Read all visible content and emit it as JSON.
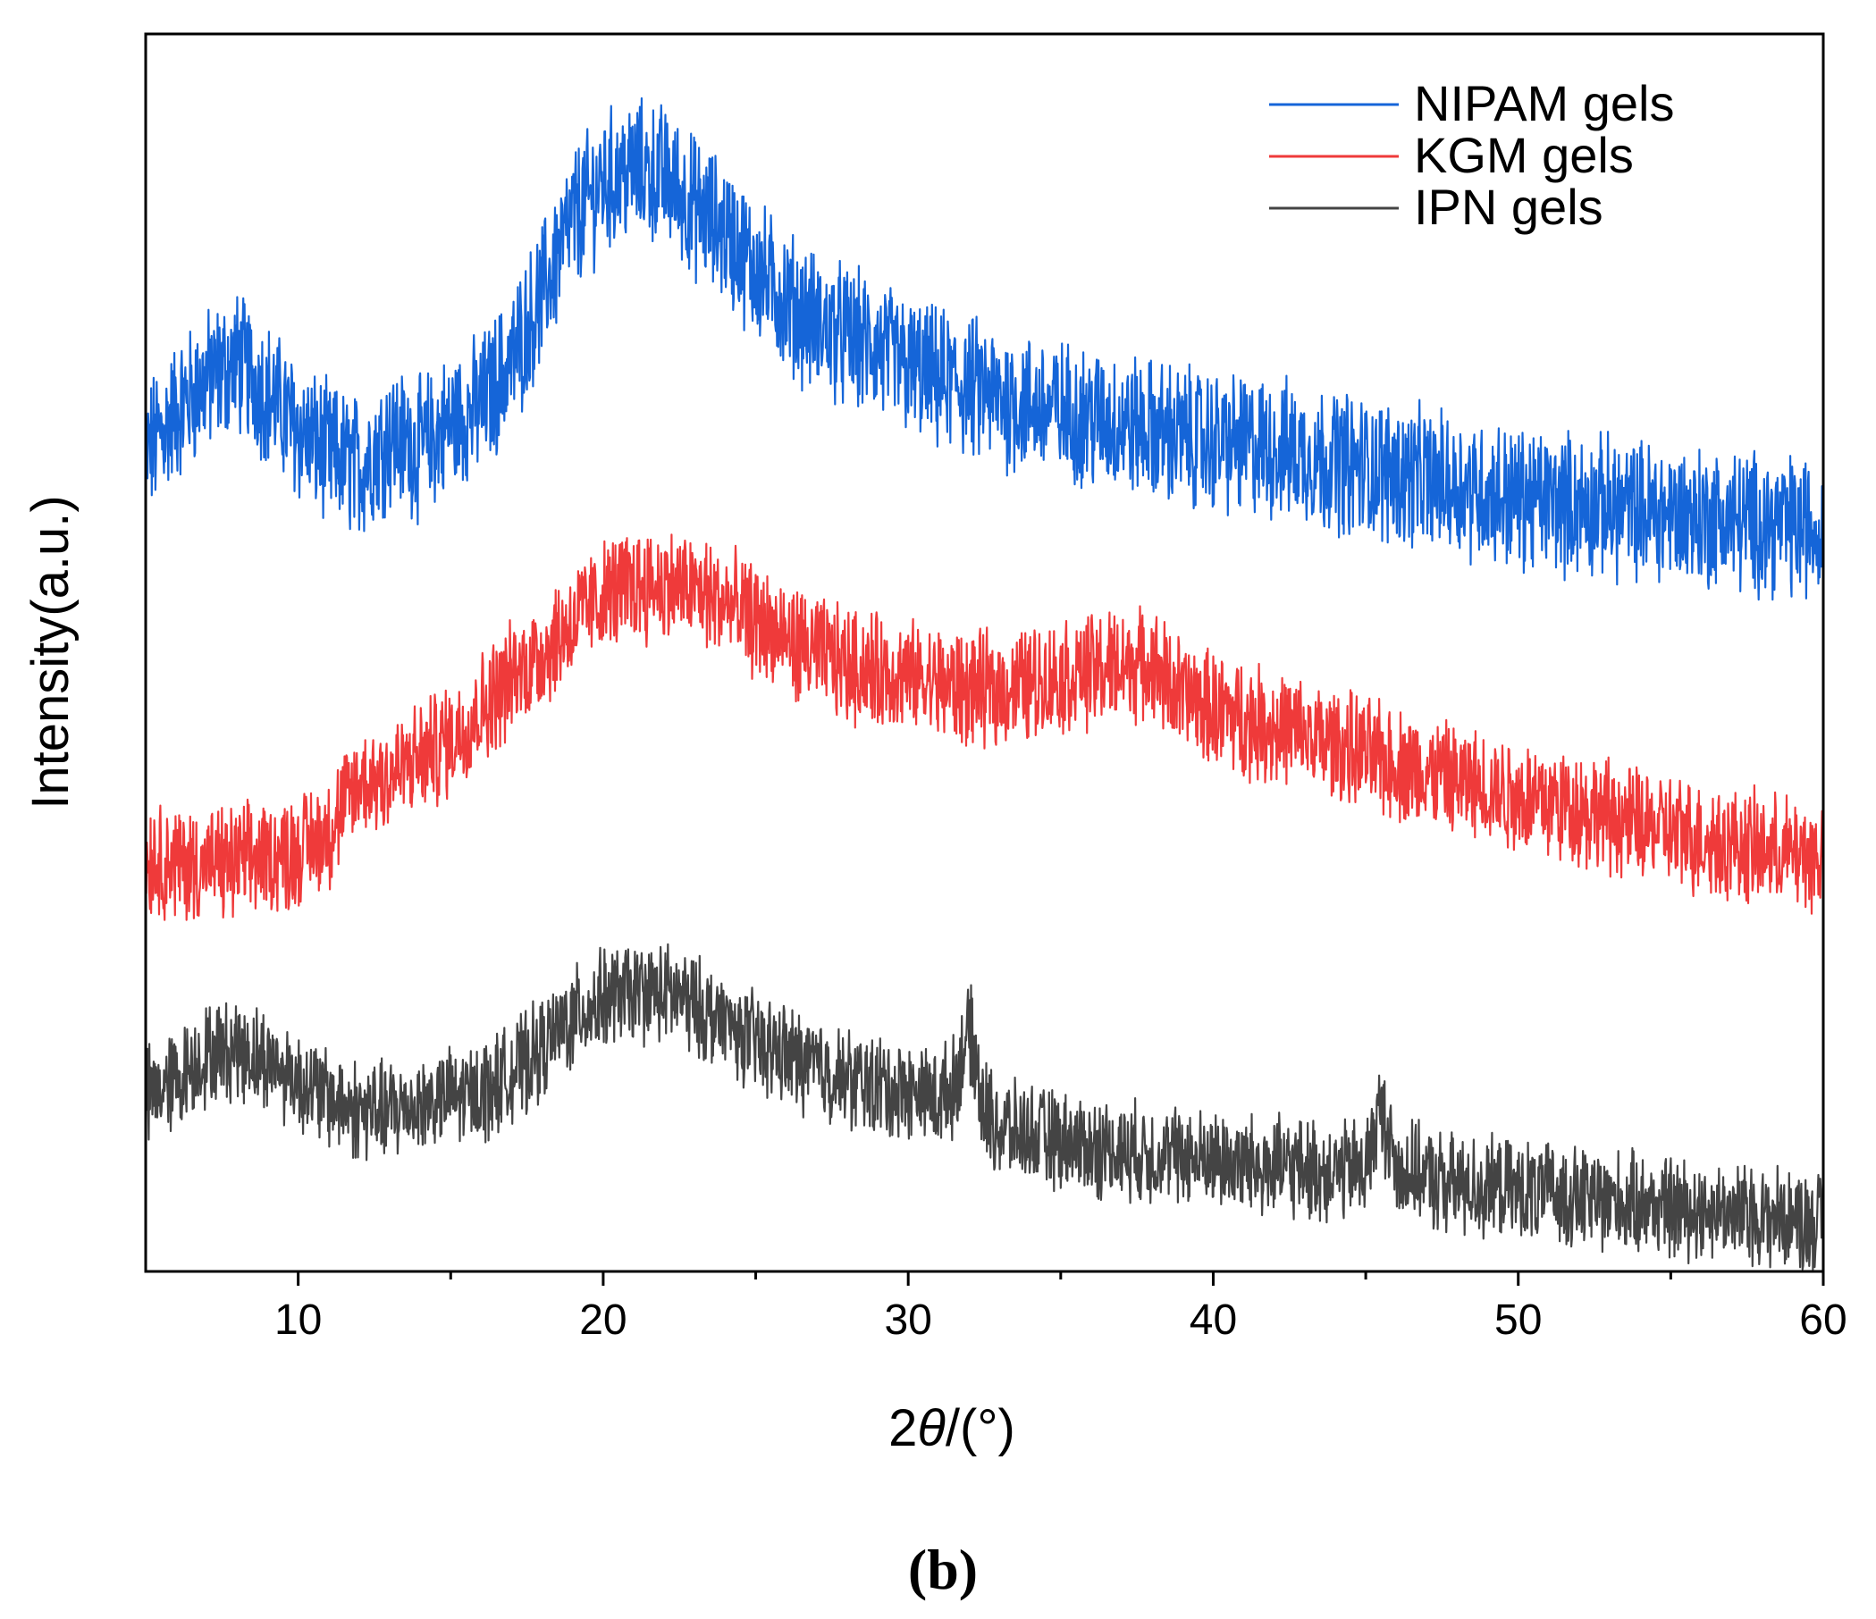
{
  "chart_data": {
    "type": "line",
    "xlabel_prefix": "2",
    "xlabel_theta": "θ",
    "xlabel_suffix": "/(°)",
    "ylabel": "Intensity(a.u.)",
    "xlim": [
      5,
      60
    ],
    "x_ticks_major": [
      10,
      20,
      30,
      40,
      50,
      60
    ],
    "x_ticks_minor": [
      15,
      25,
      35,
      45,
      55
    ],
    "y_ticks": [],
    "panel_label": "(b)",
    "legend_position": "top-right",
    "grid": false,
    "series": [
      {
        "name": "NIPAM gels",
        "color": "#1565d8",
        "noise": 0.05,
        "points": [
          [
            5,
            0.66
          ],
          [
            6,
            0.695
          ],
          [
            7,
            0.72
          ],
          [
            8,
            0.735
          ],
          [
            9,
            0.71
          ],
          [
            10,
            0.68
          ],
          [
            11,
            0.66
          ],
          [
            12,
            0.65
          ],
          [
            13,
            0.675
          ],
          [
            14,
            0.665
          ],
          [
            15,
            0.685
          ],
          [
            16,
            0.7
          ],
          [
            17,
            0.735
          ],
          [
            18,
            0.79
          ],
          [
            19,
            0.85
          ],
          [
            20,
            0.88
          ],
          [
            21,
            0.89
          ],
          [
            22,
            0.885
          ],
          [
            23,
            0.86
          ],
          [
            24,
            0.84
          ],
          [
            25,
            0.81
          ],
          [
            26,
            0.785
          ],
          [
            27,
            0.765
          ],
          [
            28,
            0.755
          ],
          [
            29,
            0.745
          ],
          [
            30,
            0.73
          ],
          [
            31,
            0.72
          ],
          [
            32,
            0.715
          ],
          [
            33,
            0.705
          ],
          [
            34,
            0.7
          ],
          [
            35,
            0.695
          ],
          [
            36,
            0.69
          ],
          [
            37,
            0.685
          ],
          [
            38,
            0.68
          ],
          [
            39,
            0.675
          ],
          [
            40,
            0.67
          ],
          [
            42,
            0.665
          ],
          [
            44,
            0.655
          ],
          [
            46,
            0.645
          ],
          [
            48,
            0.635
          ],
          [
            50,
            0.625
          ],
          [
            52,
            0.62
          ],
          [
            54,
            0.615
          ],
          [
            56,
            0.61
          ],
          [
            58,
            0.605
          ],
          [
            60,
            0.6
          ]
        ]
      },
      {
        "name": "KGM gels",
        "color": "#ef3a3a",
        "noise": 0.04,
        "points": [
          [
            5,
            0.335
          ],
          [
            6,
            0.33
          ],
          [
            7,
            0.328
          ],
          [
            8,
            0.33
          ],
          [
            9,
            0.335
          ],
          [
            10,
            0.34
          ],
          [
            11,
            0.355
          ],
          [
            12,
            0.395
          ],
          [
            13,
            0.4
          ],
          [
            14,
            0.415
          ],
          [
            15,
            0.43
          ],
          [
            16,
            0.455
          ],
          [
            17,
            0.48
          ],
          [
            18,
            0.5
          ],
          [
            19,
            0.525
          ],
          [
            20,
            0.545
          ],
          [
            21,
            0.555
          ],
          [
            22,
            0.555
          ],
          [
            23,
            0.55
          ],
          [
            24,
            0.54
          ],
          [
            25,
            0.525
          ],
          [
            26,
            0.51
          ],
          [
            27,
            0.5
          ],
          [
            28,
            0.49
          ],
          [
            29,
            0.485
          ],
          [
            30,
            0.48
          ],
          [
            31,
            0.475
          ],
          [
            32,
            0.47
          ],
          [
            33,
            0.47
          ],
          [
            34,
            0.475
          ],
          [
            35,
            0.48
          ],
          [
            36,
            0.485
          ],
          [
            37,
            0.49
          ],
          [
            38,
            0.49
          ],
          [
            39,
            0.465
          ],
          [
            40,
            0.455
          ],
          [
            42,
            0.44
          ],
          [
            44,
            0.425
          ],
          [
            46,
            0.41
          ],
          [
            48,
            0.395
          ],
          [
            50,
            0.385
          ],
          [
            52,
            0.375
          ],
          [
            54,
            0.36
          ],
          [
            56,
            0.35
          ],
          [
            58,
            0.34
          ],
          [
            60,
            0.335
          ]
        ]
      },
      {
        "name": "IPN gels",
        "color": "#444444",
        "noise": 0.035,
        "points": [
          [
            5,
            0.14
          ],
          [
            6,
            0.155
          ],
          [
            7,
            0.175
          ],
          [
            8,
            0.18
          ],
          [
            9,
            0.17
          ],
          [
            10,
            0.155
          ],
          [
            11,
            0.14
          ],
          [
            12,
            0.13
          ],
          [
            13,
            0.13
          ],
          [
            14,
            0.135
          ],
          [
            15,
            0.14
          ],
          [
            16,
            0.145
          ],
          [
            17,
            0.16
          ],
          [
            18,
            0.18
          ],
          [
            19,
            0.205
          ],
          [
            20,
            0.22
          ],
          [
            21,
            0.225
          ],
          [
            22,
            0.225
          ],
          [
            23,
            0.215
          ],
          [
            24,
            0.2
          ],
          [
            25,
            0.185
          ],
          [
            26,
            0.175
          ],
          [
            27,
            0.165
          ],
          [
            28,
            0.155
          ],
          [
            29,
            0.15
          ],
          [
            30,
            0.145
          ],
          [
            31,
            0.14
          ],
          [
            31.5,
            0.15
          ],
          [
            32,
            0.195
          ],
          [
            32.5,
            0.13
          ],
          [
            33,
            0.115
          ],
          [
            34,
            0.11
          ],
          [
            35,
            0.105
          ],
          [
            36,
            0.1
          ],
          [
            38,
            0.095
          ],
          [
            40,
            0.09
          ],
          [
            42,
            0.085
          ],
          [
            44,
            0.08
          ],
          [
            45,
            0.085
          ],
          [
            45.5,
            0.13
          ],
          [
            46,
            0.085
          ],
          [
            47,
            0.075
          ],
          [
            48,
            0.07
          ],
          [
            50,
            0.065
          ],
          [
            52,
            0.06
          ],
          [
            54,
            0.055
          ],
          [
            56,
            0.05
          ],
          [
            58,
            0.045
          ],
          [
            60,
            0.04
          ]
        ]
      }
    ]
  }
}
